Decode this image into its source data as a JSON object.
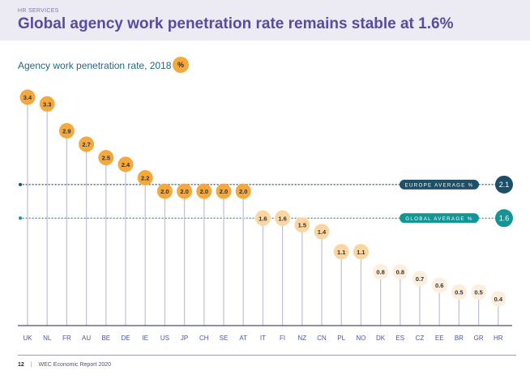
{
  "header": {
    "section": "HR SERVICES",
    "title": "Global agency work penetration rate remains stable at 1.6%"
  },
  "chart_header": {
    "title": "Agency work penetration rate, 2018",
    "unit_badge": "%"
  },
  "footer": {
    "page_number": "12",
    "separator": "|",
    "report": "WEC Economic Report 2020"
  },
  "colors": {
    "high": "#f5a93c",
    "mid": "#fbd6a0",
    "low": "#fdeedd",
    "stem": "#c5c3dc",
    "axis": "#4e4e6b",
    "europe": "#1d4f68",
    "global": "#159496",
    "tick_label": "#4a56a8"
  },
  "chart_data": {
    "type": "lollipop",
    "title": "Agency work penetration rate, 2018",
    "unit": "%",
    "categories": [
      "UK",
      "NL",
      "FR",
      "AU",
      "BE",
      "DE",
      "IE",
      "US",
      "JP",
      "CH",
      "SE",
      "AT",
      "IT",
      "FI",
      "NZ",
      "CN",
      "PL",
      "NO",
      "DK",
      "ES",
      "CZ",
      "EE",
      "BR",
      "GR",
      "HR"
    ],
    "values": [
      3.4,
      3.3,
      2.9,
      2.7,
      2.5,
      2.4,
      2.2,
      2.0,
      2.0,
      2.0,
      2.0,
      2.0,
      1.6,
      1.6,
      1.5,
      1.4,
      1.1,
      1.1,
      0.8,
      0.8,
      0.7,
      0.6,
      0.5,
      0.5,
      0.4
    ],
    "value_labels": [
      "3.4",
      "3.3",
      "2.9",
      "2.7",
      "2.5",
      "2.4",
      "2.2",
      "2.0",
      "2.0",
      "2.0",
      "2.0",
      "2.0",
      "1.6",
      "1.6",
      "1.5",
      "1.4",
      "1.1",
      "1.1",
      "0.8",
      "0.8",
      "0.7",
      "0.6",
      "0.5",
      "0.5",
      "0.4"
    ],
    "reference_lines": [
      {
        "label": "EUROPE AVERAGE %",
        "value": 2.1,
        "value_label": "2.1"
      },
      {
        "label": "GLOBAL AVERAGE %",
        "value": 1.6,
        "value_label": "1.6"
      }
    ],
    "ylim": [
      0,
      3.4
    ],
    "grid": false,
    "legend": "none"
  }
}
